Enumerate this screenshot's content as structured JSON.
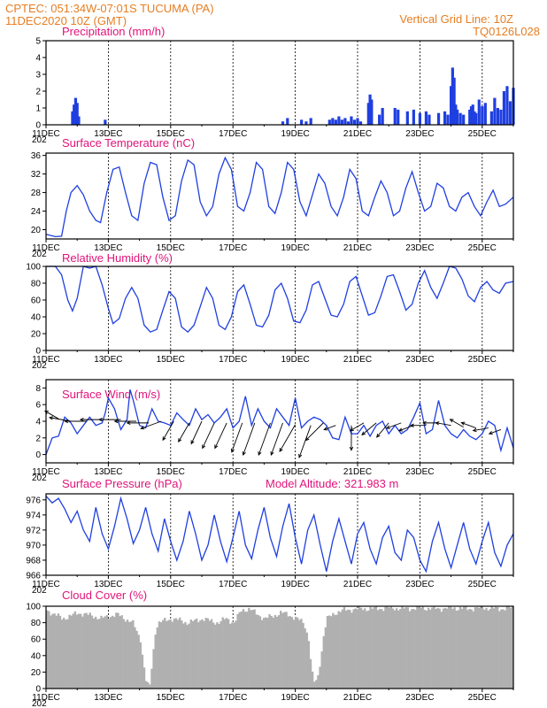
{
  "header": {
    "left_line1": "CPTEC:   051:34W-07:01S   TUCUMA (PA)",
    "left_line2": "11DEC2020 10Z (GMT)",
    "right_line1": "Vertical Grid Line: 10Z",
    "right_line2": "TQ0126L028"
  },
  "colors": {
    "header": "#e67e22",
    "panel_title": "#e0147a",
    "series": "#1f3fe0",
    "cloud": "#b0b0b0"
  },
  "x_ticks": [
    "11DEC",
    "13DEC",
    "15DEC",
    "17DEC",
    "19DEC",
    "21DEC",
    "23DEC",
    "25DEC"
  ],
  "year_fragment": "202",
  "chart_data": [
    {
      "type": "bar",
      "title": "Precipitation (mm/h)",
      "ylim": [
        0,
        5
      ],
      "yticks": [
        0,
        1,
        2,
        3,
        4,
        5
      ],
      "x_range_days": [
        0,
        15
      ],
      "x": [
        0.85,
        0.9,
        0.95,
        1.0,
        1.05,
        1.9,
        7.6,
        7.75,
        8.2,
        8.35,
        8.5,
        9.1,
        9.2,
        9.3,
        9.4,
        9.5,
        9.6,
        9.7,
        9.8,
        9.9,
        10.0,
        10.1,
        10.35,
        10.4,
        10.45,
        10.7,
        10.8,
        11.2,
        11.3,
        11.6,
        11.8,
        12.0,
        12.2,
        12.3,
        12.6,
        12.8,
        12.9,
        13.0,
        13.05,
        13.1,
        13.15,
        13.2,
        13.3,
        13.4,
        13.6,
        13.65,
        13.7,
        13.75,
        13.8,
        13.9,
        14.0,
        14.1,
        14.3,
        14.4,
        14.5,
        14.6,
        14.7,
        14.8,
        14.9,
        15.0
      ],
      "values": [
        0.8,
        1.2,
        1.6,
        1.3,
        0.5,
        0.3,
        0.2,
        0.4,
        0.3,
        0.2,
        0.4,
        0.3,
        0.4,
        0.3,
        0.5,
        0.3,
        0.4,
        0.2,
        0.5,
        0.3,
        0.4,
        0.2,
        1.3,
        1.8,
        1.5,
        0.6,
        1.0,
        1.0,
        0.9,
        0.8,
        0.9,
        0.7,
        0.8,
        0.6,
        0.7,
        0.8,
        0.6,
        2.3,
        3.4,
        2.8,
        1.2,
        0.9,
        0.7,
        0.6,
        0.9,
        1.1,
        1.2,
        0.8,
        0.7,
        1.5,
        1.1,
        1.3,
        0.8,
        1.6,
        1.0,
        0.9,
        2.0,
        2.3,
        1.4,
        2.2
      ]
    },
    {
      "type": "line",
      "title": "Surface Temperature (nC)",
      "ylim": [
        18,
        36.5
      ],
      "yticks": [
        20,
        24,
        28,
        32,
        36
      ],
      "x_range_days": [
        0,
        15
      ],
      "x": [
        0,
        0.3,
        0.5,
        0.65,
        0.8,
        1.0,
        1.2,
        1.4,
        1.6,
        1.75,
        1.95,
        2.15,
        2.35,
        2.55,
        2.75,
        2.95,
        3.15,
        3.35,
        3.55,
        3.75,
        3.95,
        4.15,
        4.35,
        4.55,
        4.75,
        4.95,
        5.15,
        5.35,
        5.55,
        5.75,
        5.95,
        6.15,
        6.35,
        6.55,
        6.75,
        6.95,
        7.15,
        7.35,
        7.55,
        7.75,
        7.95,
        8.15,
        8.35,
        8.55,
        8.75,
        8.95,
        9.15,
        9.35,
        9.55,
        9.75,
        9.95,
        10.15,
        10.35,
        10.55,
        10.75,
        10.95,
        11.15,
        11.35,
        11.55,
        11.75,
        11.95,
        12.15,
        12.35,
        12.55,
        12.75,
        12.95,
        13.15,
        13.35,
        13.55,
        13.75,
        13.95,
        14.15,
        14.35,
        14.55,
        14.75,
        15.0
      ],
      "values": [
        19,
        18.5,
        18.6,
        24,
        28,
        29.5,
        27.5,
        24,
        22,
        21.5,
        28,
        33,
        33.5,
        28,
        23,
        22,
        30,
        34.5,
        34,
        27,
        22,
        23,
        30.5,
        35,
        34,
        26,
        23,
        25,
        32,
        35.5,
        33,
        25,
        24,
        28,
        34.5,
        33,
        25,
        23.5,
        28,
        34.5,
        33,
        26,
        23,
        27.5,
        32,
        30,
        25,
        23,
        27,
        33,
        31,
        24,
        23,
        27,
        30.5,
        28,
        23,
        24,
        29,
        32.5,
        28,
        24,
        25,
        30,
        29,
        25,
        24,
        27,
        28,
        25,
        23,
        26,
        28.5,
        25,
        25.5,
        27
      ]
    },
    {
      "type": "line",
      "title": "Relative Humidity (%)",
      "ylim": [
        0,
        100
      ],
      "yticks": [
        0,
        20,
        40,
        60,
        80,
        100
      ],
      "x_range_days": [
        0,
        15
      ],
      "x": [
        0,
        0.3,
        0.5,
        0.7,
        0.85,
        1.0,
        1.2,
        1.4,
        1.6,
        1.8,
        2.0,
        2.15,
        2.35,
        2.55,
        2.75,
        2.95,
        3.15,
        3.35,
        3.55,
        3.75,
        3.95,
        4.15,
        4.35,
        4.55,
        4.75,
        4.95,
        5.15,
        5.35,
        5.55,
        5.75,
        5.95,
        6.15,
        6.35,
        6.55,
        6.75,
        6.95,
        7.15,
        7.35,
        7.55,
        7.75,
        7.95,
        8.15,
        8.35,
        8.55,
        8.75,
        8.95,
        9.15,
        9.35,
        9.55,
        9.75,
        9.95,
        10.15,
        10.35,
        10.55,
        10.75,
        10.95,
        11.15,
        11.35,
        11.55,
        11.75,
        11.95,
        12.15,
        12.35,
        12.55,
        12.75,
        12.95,
        13.15,
        13.35,
        13.55,
        13.75,
        13.95,
        14.15,
        14.35,
        14.55,
        14.75,
        15.0
      ],
      "values": [
        100,
        100,
        90,
        60,
        47,
        62,
        100,
        98,
        100,
        78,
        50,
        32,
        38,
        62,
        75,
        62,
        30,
        22,
        25,
        48,
        70,
        62,
        28,
        22,
        30,
        52,
        75,
        62,
        30,
        25,
        40,
        70,
        78,
        55,
        30,
        28,
        42,
        72,
        80,
        62,
        35,
        33,
        48,
        78,
        82,
        62,
        42,
        40,
        55,
        82,
        88,
        65,
        42,
        45,
        65,
        88,
        90,
        70,
        48,
        55,
        80,
        95,
        75,
        62,
        80,
        100,
        98,
        85,
        65,
        58,
        75,
        82,
        72,
        68,
        80,
        82
      ]
    },
    {
      "type": "line",
      "title": "Surface Wind (m/s)",
      "ylim": [
        -1,
        9
      ],
      "yticks": [
        0,
        2,
        4,
        6,
        8
      ],
      "x_range_days": [
        0,
        15
      ],
      "x": [
        0,
        0.2,
        0.4,
        0.6,
        0.8,
        1.0,
        1.2,
        1.4,
        1.6,
        1.8,
        1.9,
        2.0,
        2.2,
        2.4,
        2.6,
        2.7,
        2.8,
        3.0,
        3.2,
        3.4,
        3.6,
        3.8,
        4.0,
        4.2,
        4.4,
        4.6,
        4.8,
        5.0,
        5.2,
        5.4,
        5.6,
        5.8,
        6.0,
        6.2,
        6.4,
        6.6,
        6.8,
        7.0,
        7.2,
        7.4,
        7.6,
        7.8,
        8.0,
        8.2,
        8.4,
        8.6,
        8.8,
        9.0,
        9.2,
        9.4,
        9.6,
        9.8,
        10.0,
        10.2,
        10.4,
        10.6,
        10.8,
        11.0,
        11.2,
        11.4,
        11.6,
        11.8,
        12.0,
        12.2,
        12.4,
        12.6,
        12.8,
        13.0,
        13.2,
        13.4,
        13.6,
        13.8,
        14.0,
        14.2,
        14.4,
        14.6,
        14.8,
        15.0
      ],
      "values": [
        0,
        2.0,
        2.2,
        4.5,
        3.8,
        2.5,
        3.5,
        4.5,
        3.5,
        3.8,
        5.0,
        6.8,
        5.5,
        3.0,
        4.2,
        7.8,
        6.5,
        3.5,
        3.2,
        5.5,
        4.0,
        3.8,
        3.5,
        5.0,
        4.2,
        3.5,
        5.5,
        4.2,
        4.8,
        3.8,
        4.5,
        5.5,
        3.2,
        4.0,
        7.0,
        3.5,
        5.5,
        4.0,
        3.2,
        5.5,
        4.5,
        3.5,
        6.8,
        3.2,
        4.0,
        4.5,
        4.2,
        3.5,
        2.0,
        1.8,
        4.5,
        2.5,
        2.5,
        3.5,
        2.2,
        3.5,
        4.0,
        2.5,
        3.5,
        2.5,
        3.0,
        4.5,
        6.2,
        2.5,
        3.0,
        6.5,
        3.5,
        2.5,
        2.0,
        3.0,
        2.2,
        1.8,
        2.5,
        4.0,
        3.5,
        0.5,
        3.2,
        0.8
      ]
    },
    {
      "type": "line",
      "title": "Surface Pressure (hPa)",
      "annotation": "Model Altitude: 321.983 m",
      "ylim": [
        966,
        976.8
      ],
      "yticks": [
        966,
        968,
        970,
        972,
        974,
        976
      ],
      "x_range_days": [
        0,
        15
      ],
      "x": [
        0,
        0.2,
        0.4,
        0.6,
        0.8,
        1.0,
        1.2,
        1.4,
        1.6,
        1.8,
        2.0,
        2.2,
        2.4,
        2.6,
        2.8,
        3.0,
        3.2,
        3.4,
        3.6,
        3.8,
        4.0,
        4.2,
        4.4,
        4.6,
        4.8,
        5.0,
        5.2,
        5.4,
        5.6,
        5.8,
        6.0,
        6.2,
        6.4,
        6.6,
        6.8,
        7.0,
        7.2,
        7.4,
        7.6,
        7.8,
        8.0,
        8.2,
        8.4,
        8.6,
        8.8,
        9.0,
        9.2,
        9.4,
        9.6,
        9.8,
        10.0,
        10.2,
        10.4,
        10.6,
        10.8,
        11.0,
        11.2,
        11.4,
        11.6,
        11.8,
        12.0,
        12.2,
        12.4,
        12.6,
        12.8,
        13.0,
        13.2,
        13.4,
        13.6,
        13.8,
        14.0,
        14.2,
        14.4,
        14.6,
        14.8,
        15.0
      ],
      "values": [
        976.5,
        975.6,
        976.2,
        974.8,
        973.0,
        974.5,
        972.0,
        970.5,
        975.0,
        971.5,
        969.5,
        972.5,
        976.2,
        973.5,
        970.2,
        972.0,
        975.0,
        971.5,
        969.2,
        973.5,
        970.5,
        968.0,
        970.5,
        974.5,
        971.5,
        968.0,
        970.0,
        974.0,
        970.5,
        967.8,
        971.0,
        974.5,
        970.0,
        968.2,
        972.0,
        975.0,
        971.0,
        968.5,
        972.5,
        975.5,
        971.0,
        967.5,
        972.0,
        974.0,
        970.0,
        966.5,
        970.5,
        973.5,
        970.5,
        967.5,
        971.5,
        973.0,
        969.5,
        967.5,
        971.0,
        972.5,
        969.0,
        968.0,
        972.0,
        971.0,
        968.0,
        966.5,
        970.5,
        973.0,
        969.5,
        967.0,
        970.0,
        973.0,
        969.5,
        967.5,
        970.5,
        973.0,
        969.0,
        967.2,
        970.0,
        971.5
      ]
    },
    {
      "type": "bar",
      "title": "Cloud Cover (%)",
      "ylim": [
        0,
        100
      ],
      "yticks": [
        0,
        20,
        40,
        60,
        80,
        100
      ],
      "x_range_days": [
        0,
        15
      ],
      "x": [
        0.0,
        0.25,
        0.5,
        0.75,
        1.0,
        1.25,
        1.5,
        1.75,
        2.0,
        2.25,
        2.5,
        2.75,
        3.0,
        3.1,
        3.2,
        3.3,
        3.4,
        3.5,
        3.6,
        3.75,
        4.0,
        4.25,
        4.5,
        4.75,
        5.0,
        5.25,
        5.5,
        5.75,
        6.0,
        6.25,
        6.5,
        6.75,
        7.0,
        7.25,
        7.5,
        7.75,
        8.0,
        8.25,
        8.4,
        8.5,
        8.6,
        8.7,
        8.8,
        8.9,
        9.0,
        9.25,
        9.5,
        9.75,
        10.0,
        10.5,
        11.0,
        11.5,
        12.0,
        12.5,
        13.0,
        13.5,
        14.0,
        14.5,
        15.0
      ],
      "values": [
        95,
        90,
        85,
        88,
        92,
        90,
        88,
        85,
        88,
        90,
        85,
        80,
        60,
        30,
        5,
        3,
        40,
        75,
        80,
        82,
        85,
        83,
        80,
        82,
        85,
        82,
        80,
        85,
        80,
        95,
        97,
        90,
        85,
        88,
        92,
        90,
        85,
        80,
        60,
        20,
        5,
        15,
        40,
        70,
        85,
        92,
        95,
        96,
        97,
        97,
        98,
        97,
        98,
        97,
        98,
        97,
        98,
        97,
        98
      ]
    }
  ],
  "wind_vectors": {
    "note_dirs": "direction in degrees the arrow points toward (screen math, 0=east, 90=north)",
    "x": [
      0.4,
      0.8,
      1.3,
      1.8,
      2.4,
      2.9,
      3.3,
      3.7,
      4.1,
      4.6,
      5.0,
      5.4,
      5.8,
      6.3,
      6.7,
      7.2,
      7.6,
      8.0,
      8.5,
      8.9,
      9.3,
      9.8,
      10.2,
      10.6,
      11.0,
      11.4,
      11.8,
      12.2,
      12.6,
      13.0,
      13.4,
      13.8,
      14.2,
      14.6
    ],
    "y": [
      4.3,
      4.0,
      4.0,
      4.2,
      4.2,
      4.0,
      3.8,
      4.0,
      4.0,
      3.8,
      4.0,
      3.8,
      3.8,
      3.8,
      3.8,
      3.8,
      3.8,
      3.6,
      3.5,
      3.8,
      3.5,
      3.5,
      3.8,
      3.8,
      3.8,
      3.8,
      3.5,
      3.5,
      3.8,
      3.5,
      3.3,
      3.2,
      3.2,
      3.0
    ],
    "dir": [
      150,
      170,
      180,
      180,
      180,
      180,
      180,
      200,
      240,
      240,
      245,
      245,
      245,
      250,
      250,
      250,
      250,
      240,
      250,
      225,
      200,
      270,
      210,
      220,
      230,
      200,
      200,
      180,
      180,
      170,
      150,
      160,
      190,
      200
    ],
    "speed": [
      2.5,
      3.5,
      3.5,
      3.5,
      3.5,
      3.5,
      3.5,
      3.5,
      3.5,
      3.5,
      4.0,
      4.5,
      4.5,
      5.0,
      5.5,
      5.5,
      5.5,
      5.0,
      5.5,
      4.0,
      2.0,
      4.0,
      2.5,
      3.0,
      3.0,
      2.5,
      2.5,
      2.5,
      2.5,
      2.5,
      2.5,
      2.5,
      2.5,
      2.0
    ]
  }
}
